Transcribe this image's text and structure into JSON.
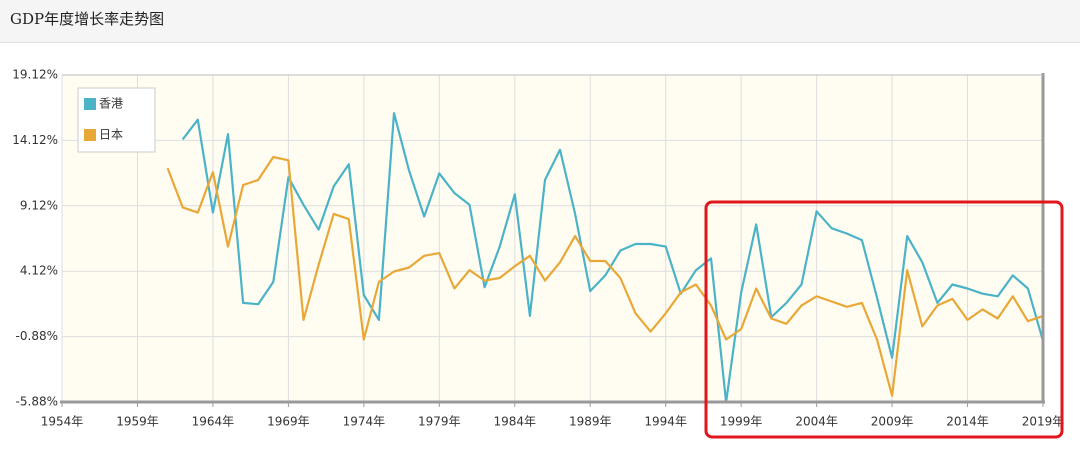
{
  "chart_data": {
    "type": "line",
    "title": "GDP年度增长率走势图",
    "x": [
      1961,
      1962,
      1963,
      1964,
      1965,
      1966,
      1967,
      1968,
      1969,
      1970,
      1971,
      1972,
      1973,
      1974,
      1975,
      1976,
      1977,
      1978,
      1979,
      1980,
      1981,
      1982,
      1983,
      1984,
      1985,
      1986,
      1987,
      1988,
      1989,
      1990,
      1991,
      1992,
      1993,
      1994,
      1995,
      1996,
      1997,
      1998,
      1999,
      2000,
      2001,
      2002,
      2003,
      2004,
      2005,
      2006,
      2007,
      2008,
      2009,
      2010,
      2011,
      2012,
      2013,
      2014,
      2015,
      2016,
      2017,
      2018,
      2019
    ],
    "series": [
      {
        "name": "香港",
        "color": "#4bb3c8",
        "values": [
          null,
          14.2,
          15.7,
          8.6,
          14.6,
          1.7,
          1.6,
          3.3,
          11.3,
          9.2,
          7.3,
          10.6,
          12.3,
          2.3,
          0.4,
          16.2,
          11.8,
          8.3,
          11.6,
          10.1,
          9.2,
          2.9,
          6.0,
          10.0,
          0.7,
          11.1,
          13.4,
          8.5,
          2.6,
          3.8,
          5.7,
          6.2,
          6.2,
          6.0,
          2.4,
          4.2,
          5.1,
          -5.9,
          2.5,
          7.7,
          0.6,
          1.7,
          3.1,
          8.7,
          7.4,
          7.0,
          6.5,
          2.1,
          -2.5,
          6.8,
          4.8,
          1.7,
          3.1,
          2.8,
          2.4,
          2.2,
          3.8,
          2.8,
          -1.2
        ]
      },
      {
        "name": "日本",
        "color": "#e8a838",
        "values": [
          12.0,
          9.0,
          8.6,
          11.7,
          6.0,
          10.7,
          11.1,
          12.85,
          12.6,
          0.4,
          4.6,
          8.5,
          8.1,
          -1.1,
          3.3,
          4.1,
          4.4,
          5.3,
          5.5,
          2.8,
          4.2,
          3.4,
          3.6,
          4.5,
          5.3,
          3.4,
          4.8,
          6.8,
          4.9,
          4.9,
          3.6,
          0.9,
          -0.5,
          0.9,
          2.5,
          3.1,
          1.5,
          -1.1,
          -0.3,
          2.8,
          0.5,
          0.1,
          1.5,
          2.2,
          1.8,
          1.4,
          1.7,
          -1.1,
          -5.4,
          4.2,
          -0.1,
          1.5,
          2.0,
          0.4,
          1.2,
          0.5,
          2.2,
          0.3,
          0.7
        ]
      }
    ],
    "xlim": [
      1954,
      2019
    ],
    "xticks": [
      {
        "value": 1954,
        "label": "1954年"
      },
      {
        "value": 1959,
        "label": "1959年"
      },
      {
        "value": 1964,
        "label": "1964年"
      },
      {
        "value": 1969,
        "label": "1969年"
      },
      {
        "value": 1974,
        "label": "1974年"
      },
      {
        "value": 1979,
        "label": "1979年"
      },
      {
        "value": 1984,
        "label": "1984年"
      },
      {
        "value": 1989,
        "label": "1989年"
      },
      {
        "value": 1994,
        "label": "1994年"
      },
      {
        "value": 1999,
        "label": "1999年"
      },
      {
        "value": 2004,
        "label": "2004年"
      },
      {
        "value": 2009,
        "label": "2009年"
      },
      {
        "value": 2014,
        "label": "2014年"
      },
      {
        "value": 2019,
        "label": "2019年"
      }
    ],
    "ylim": [
      -5.88,
      19.12
    ],
    "yticks": [
      {
        "value": -5.88,
        "label": "-5.88%"
      },
      {
        "value": -0.88,
        "label": "-0.88%"
      },
      {
        "value": 4.12,
        "label": "4.12%"
      },
      {
        "value": 9.12,
        "label": "9.12%"
      },
      {
        "value": 14.12,
        "label": "14.12%"
      },
      {
        "value": 19.12,
        "label": "19.12%"
      }
    ],
    "grid": true,
    "legend": "top-left"
  }
}
